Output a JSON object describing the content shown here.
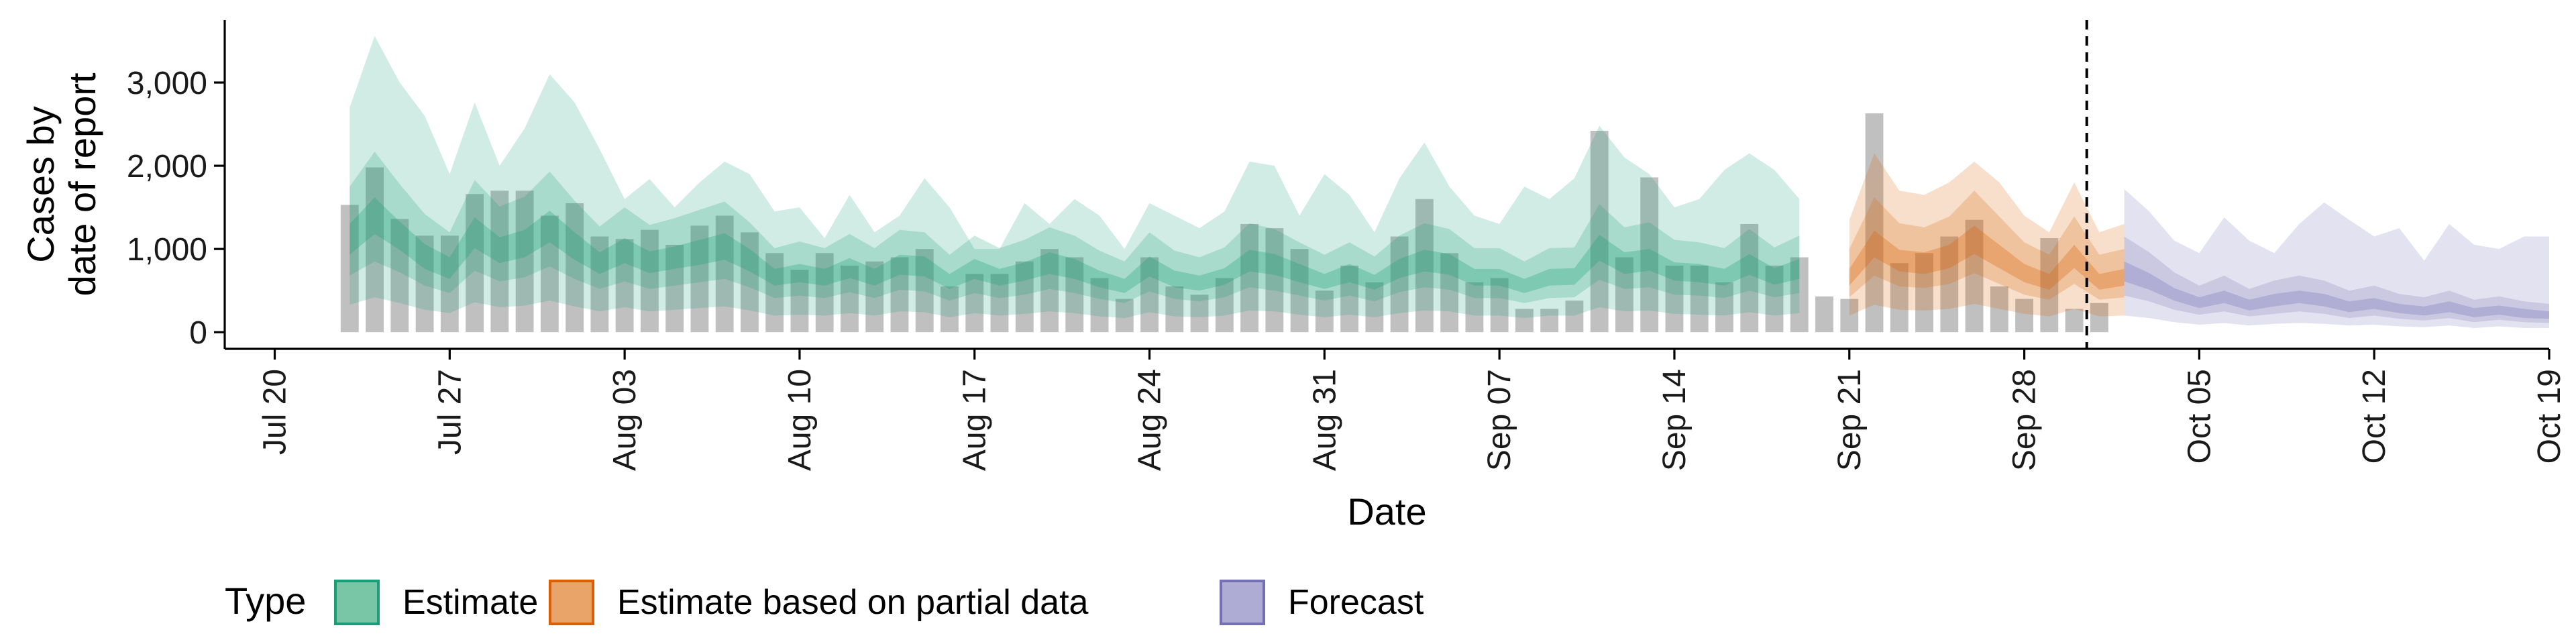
{
  "chart_data": {
    "type": "area",
    "xlabel": "Date",
    "ylabel": "Cases by\ndate of report",
    "x_ticks": [
      "Jul 20",
      "Jul 27",
      "Aug 03",
      "Aug 10",
      "Aug 17",
      "Aug 24",
      "Aug 31",
      "Sep 07",
      "Sep 14",
      "Sep 21",
      "Sep 28",
      "Oct 05",
      "Oct 12",
      "Oct 19"
    ],
    "y_ticks": [
      0,
      1000,
      2000,
      3000
    ],
    "y_tick_labels": [
      "0",
      "1,000",
      "2,000",
      "3,000"
    ],
    "ylim": [
      -200,
      3750
    ],
    "xlim": [
      "2020-07-18",
      "2020-10-19"
    ],
    "grid": false,
    "legend": {
      "title": "Type",
      "position": "bottom-left",
      "entries": [
        {
          "label": "Estimate",
          "fill": "#79c6a7",
          "stroke": "#1b9e77"
        },
        {
          "label": "Estimate based on partial data",
          "fill": "#e9a46a",
          "stroke": "#d95f02"
        },
        {
          "label": "Forecast",
          "fill": "#aeabd4",
          "stroke": "#7570b3"
        }
      ]
    },
    "colors": {
      "bar": "#bdbdbd",
      "estimate": "#1b9e77",
      "partial": "#d95f02",
      "forecast": "#7570b3",
      "divider": "#000000"
    },
    "forecast_start_line": "2020-10-01",
    "reported_cases": {
      "start_date": "2020-07-23",
      "values": [
        1530,
        1980,
        1360,
        1160,
        1160,
        1660,
        1700,
        1700,
        1400,
        1550,
        1150,
        1120,
        1230,
        1050,
        1280,
        1400,
        1200,
        950,
        750,
        950,
        800,
        850,
        900,
        1000,
        550,
        700,
        700,
        850,
        1000,
        900,
        650,
        400,
        900,
        550,
        450,
        650,
        1300,
        1250,
        1000,
        500,
        800,
        600,
        1150,
        1600,
        950,
        600,
        650,
        280,
        280,
        380,
        2420,
        900,
        1860,
        800,
        800,
        600,
        1300,
        800,
        900,
        430,
        400,
        2630,
        830,
        950,
        1150,
        1350,
        550,
        400,
        1130,
        280,
        350
      ]
    },
    "estimate": {
      "start_date": "2020-07-23",
      "median": [
        1100,
        1380,
        1150,
        900,
        760,
        1180,
        970,
        1050,
        1250,
        1020,
        820,
        970,
        830,
        880,
        950,
        1020,
        850,
        650,
        700,
        650,
        760,
        650,
        800,
        780,
        600,
        750,
        650,
        720,
        820,
        750,
        630,
        550,
        780,
        630,
        580,
        660,
        850,
        800,
        700,
        600,
        700,
        590,
        750,
        850,
        800,
        650,
        650,
        550,
        650,
        660,
        1000,
        820,
        860,
        720,
        700,
        650,
        800,
        660,
        750
      ],
      "inner_lower": [
        930,
        1180,
        990,
        760,
        640,
        1010,
        830,
        900,
        1080,
        870,
        700,
        830,
        710,
        760,
        810,
        870,
        730,
        560,
        600,
        560,
        650,
        560,
        690,
        670,
        520,
        640,
        560,
        620,
        700,
        640,
        540,
        470,
        670,
        540,
        500,
        570,
        730,
        690,
        600,
        520,
        600,
        510,
        650,
        730,
        690,
        560,
        560,
        470,
        560,
        570,
        860,
        700,
        740,
        620,
        600,
        560,
        690,
        570,
        640
      ],
      "inner_upper": [
        1300,
        1620,
        1330,
        1060,
        900,
        1380,
        1140,
        1230,
        1460,
        1200,
        960,
        1130,
        970,
        1030,
        1110,
        1190,
        1000,
        760,
        820,
        760,
        890,
        760,
        930,
        910,
        700,
        880,
        760,
        840,
        960,
        880,
        740,
        640,
        910,
        740,
        680,
        770,
        990,
        940,
        820,
        700,
        820,
        690,
        880,
        990,
        940,
        760,
        760,
        640,
        760,
        770,
        1170,
        960,
        1000,
        840,
        820,
        760,
        940,
        770,
        880
      ],
      "mid_lower": [
        680,
        850,
        720,
        560,
        470,
        740,
        610,
        660,
        790,
        640,
        520,
        610,
        520,
        560,
        600,
        640,
        540,
        410,
        440,
        410,
        480,
        410,
        510,
        490,
        380,
        470,
        410,
        450,
        520,
        470,
        400,
        350,
        490,
        400,
        370,
        420,
        540,
        500,
        440,
        380,
        440,
        370,
        480,
        540,
        510,
        410,
        410,
        350,
        410,
        420,
        630,
        520,
        540,
        450,
        440,
        410,
        500,
        420,
        470
      ],
      "mid_upper": [
        1750,
        2170,
        1780,
        1420,
        1200,
        1830,
        1510,
        1630,
        1930,
        1580,
        1270,
        1500,
        1290,
        1370,
        1470,
        1570,
        1320,
        1010,
        1090,
        1010,
        1180,
        1010,
        1230,
        1200,
        930,
        1160,
        1010,
        1110,
        1260,
        1160,
        980,
        850,
        1200,
        980,
        900,
        1020,
        1310,
        1240,
        1080,
        930,
        1080,
        910,
        1160,
        1310,
        1240,
        1010,
        1010,
        850,
        1010,
        1020,
        1540,
        1260,
        1320,
        1110,
        1080,
        1010,
        1240,
        1020,
        1160
      ],
      "outer_lower": [
        330,
        420,
        350,
        270,
        230,
        360,
        300,
        320,
        380,
        310,
        250,
        300,
        250,
        270,
        290,
        310,
        260,
        200,
        210,
        200,
        230,
        200,
        250,
        240,
        180,
        230,
        200,
        220,
        250,
        230,
        190,
        170,
        240,
        190,
        180,
        200,
        260,
        250,
        210,
        180,
        210,
        180,
        230,
        260,
        250,
        200,
        200,
        170,
        200,
        200,
        300,
        250,
        260,
        220,
        210,
        200,
        240,
        200,
        230
      ],
      "outer_upper": [
        2700,
        3560,
        3000,
        2600,
        1900,
        2760,
        2000,
        2450,
        3100,
        2760,
        2200,
        1600,
        1840,
        1500,
        1800,
        2050,
        1900,
        1450,
        1500,
        1130,
        1650,
        1200,
        1400,
        1850,
        1500,
        1000,
        1000,
        1550,
        1300,
        1600,
        1400,
        1000,
        1550,
        1400,
        1250,
        1450,
        2050,
        2000,
        1400,
        1900,
        1650,
        1200,
        1850,
        2280,
        1750,
        1400,
        1300,
        1750,
        1600,
        1850,
        2480,
        2100,
        1900,
        1500,
        1600,
        1950,
        2150,
        1950,
        1600
      ]
    },
    "partial": {
      "start_date": "2020-09-21",
      "median": [
        650,
        1050,
        850,
        820,
        900,
        1100,
        900,
        700,
        600,
        900,
        600,
        650
      ],
      "inner_lower": [
        560,
        900,
        730,
        700,
        770,
        940,
        770,
        600,
        510,
        770,
        510,
        560
      ],
      "inner_upper": [
        760,
        1220,
        990,
        960,
        1050,
        1280,
        1050,
        820,
        700,
        1050,
        700,
        760
      ],
      "mid_lower": [
        420,
        680,
        550,
        530,
        580,
        710,
        580,
        450,
        390,
        580,
        390,
        420
      ],
      "mid_upper": [
        1000,
        1620,
        1310,
        1260,
        1390,
        1700,
        1390,
        1080,
        930,
        1390,
        930,
        1000
      ],
      "outer_lower": [
        200,
        330,
        270,
        260,
        280,
        340,
        280,
        220,
        190,
        280,
        190,
        200
      ],
      "outer_upper": [
        1350,
        2150,
        1700,
        1650,
        1800,
        2050,
        1800,
        1400,
        1200,
        1800,
        1200,
        1300
      ]
    },
    "forecast": {
      "start_date": "2020-10-02",
      "median": [
        720,
        600,
        450,
        350,
        420,
        320,
        380,
        420,
        380,
        300,
        340,
        280,
        250,
        300,
        230,
        260,
        220,
        200
      ],
      "inner_lower": [
        610,
        510,
        380,
        290,
        350,
        260,
        310,
        350,
        310,
        240,
        280,
        230,
        200,
        240,
        180,
        210,
        170,
        160
      ],
      "inner_upper": [
        850,
        710,
        530,
        420,
        500,
        390,
        460,
        500,
        460,
        370,
        410,
        340,
        310,
        370,
        290,
        320,
        280,
        250
      ],
      "mid_lower": [
        440,
        370,
        270,
        210,
        250,
        190,
        220,
        250,
        220,
        170,
        200,
        160,
        140,
        170,
        120,
        150,
        120,
        110
      ],
      "mid_upper": [
        1150,
        960,
        720,
        560,
        680,
        520,
        620,
        680,
        620,
        500,
        560,
        460,
        420,
        500,
        390,
        430,
        370,
        340
      ],
      "outer_lower": [
        200,
        170,
        120,
        90,
        110,
        80,
        100,
        110,
        100,
        80,
        90,
        70,
        60,
        80,
        50,
        70,
        50,
        50
      ],
      "outer_upper": [
        1720,
        1450,
        1100,
        950,
        1380,
        1100,
        950,
        1300,
        1560,
        1350,
        1150,
        1250,
        860,
        1300,
        1050,
        1000,
        1150,
        1150
      ]
    }
  }
}
